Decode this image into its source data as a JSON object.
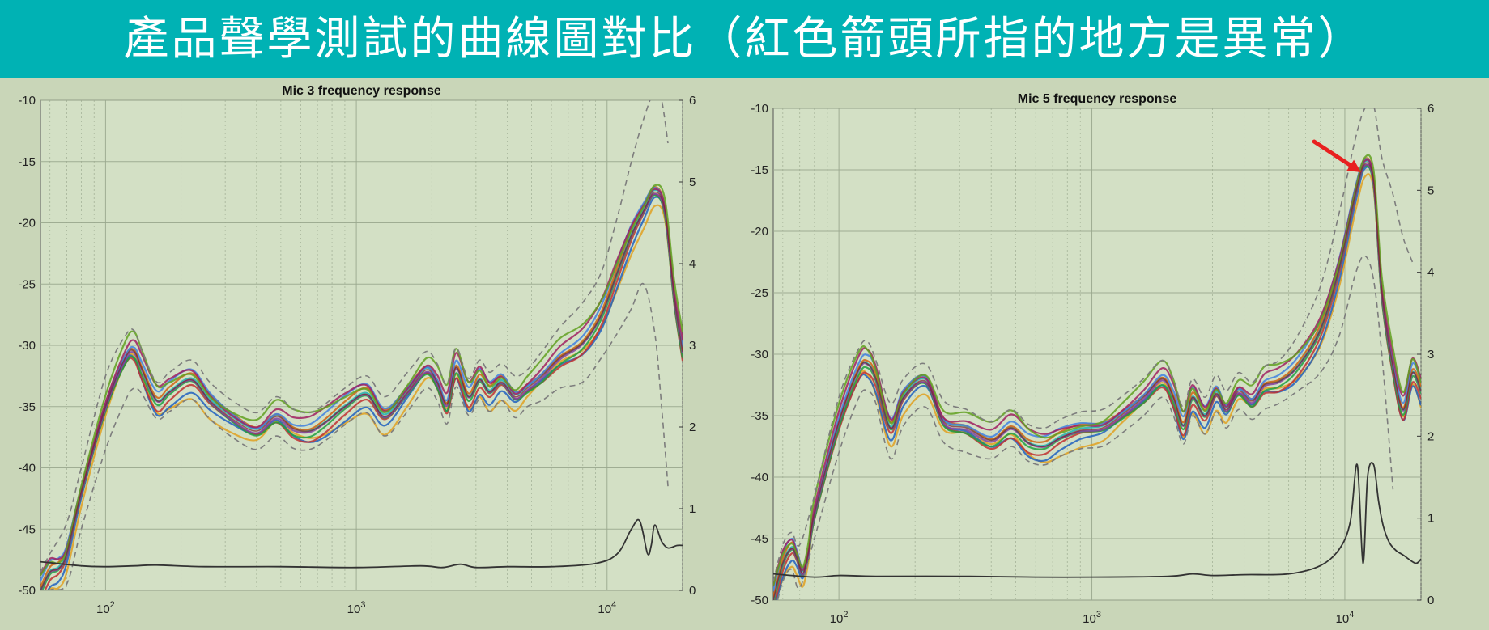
{
  "slide_title": "產品聲學測試的曲線圖對比（紅色箭頭所指的地方是異常）",
  "colors": {
    "title_bg": "#00b2b4",
    "plot_bg": "#d3e0c5",
    "page_bg": "#c9d6b8",
    "grid": "#9aa88e",
    "bound": "#7d7d7d",
    "deviation": "#333333",
    "arrow": "#e8201f"
  },
  "chart_data": [
    {
      "type": "line",
      "title": "Mic 3 frequency response",
      "xscale": "log",
      "xlim": [
        55,
        20000
      ],
      "x_ticks": [
        "10^2",
        "10^3",
        "10^4"
      ],
      "ylim": [
        -50,
        -10
      ],
      "y_ticks": [
        "-10",
        "-15",
        "-20",
        "-25",
        "-30",
        "-35",
        "-40",
        "-45",
        "-50"
      ],
      "y2lim": [
        0,
        6
      ],
      "y2_ticks": [
        "6",
        "5",
        "4",
        "3",
        "2",
        "1",
        "0"
      ],
      "response_curve": {
        "x": [
          55,
          60,
          65,
          70,
          80,
          100,
          120,
          130,
          140,
          160,
          180,
          220,
          260,
          320,
          400,
          480,
          560,
          650,
          750,
          900,
          1100,
          1300,
          1600,
          1900,
          2100,
          2300,
          2500,
          2800,
          3100,
          3400,
          3800,
          4300,
          4800,
          5500,
          6500,
          8000,
          9500,
          11000,
          12500,
          14000,
          15500,
          17000,
          18500,
          20000
        ],
        "y": [
          -50,
          -48.5,
          -48.2,
          -47,
          -42,
          -35,
          -31,
          -30.5,
          -32,
          -34.5,
          -33.8,
          -32.8,
          -34.5,
          -36,
          -37,
          -35.8,
          -36.8,
          -37,
          -36.3,
          -35,
          -34,
          -35.8,
          -33.8,
          -32,
          -33,
          -34.8,
          -31.8,
          -34.2,
          -32.8,
          -33.8,
          -33,
          -34.2,
          -33.5,
          -32.5,
          -31,
          -29.8,
          -27.5,
          -24,
          -21,
          -19,
          -17.5,
          -19,
          -26,
          -30.5
        ]
      },
      "band_half_width": 1.6,
      "upper_bound": {
        "x": [
          55,
          60,
          70,
          80,
          100,
          120,
          130,
          140,
          160,
          180,
          220,
          260,
          320,
          400,
          480,
          560,
          650,
          750,
          900,
          1100,
          1300,
          1600,
          1900,
          2100,
          2300,
          2500,
          2800,
          3100,
          3400,
          3800,
          4300,
          4800,
          5500,
          6500,
          8000,
          9500,
          11000,
          12500,
          14000,
          15500,
          16500,
          17500
        ],
        "y": [
          -48.5,
          -47,
          -44.5,
          -40,
          -32.5,
          -29.2,
          -28.8,
          -30.5,
          -33,
          -32.2,
          -31.2,
          -33,
          -34.5,
          -35.5,
          -34.2,
          -35.2,
          -35.5,
          -34.8,
          -33.5,
          -32.5,
          -34.2,
          -32.2,
          -30.5,
          -31.5,
          -33.2,
          -30.2,
          -32.7,
          -31.2,
          -32.2,
          -31.5,
          -32.5,
          -32,
          -30.5,
          -28.5,
          -26.5,
          -24,
          -19.5,
          -15,
          -11.5,
          -9.2,
          -10,
          -13.5
        ]
      },
      "lower_bound": {
        "x": [
          55,
          60,
          70,
          80,
          100,
          120,
          130,
          140,
          160,
          180,
          220,
          260,
          320,
          400,
          480,
          560,
          650,
          750,
          900,
          1100,
          1300,
          1600,
          1900,
          2100,
          2300,
          2500,
          2800,
          3100,
          3400,
          3800,
          4300,
          4800,
          5500,
          6500,
          8000,
          9500,
          11000,
          12500,
          14000,
          15500,
          16500,
          17500
        ],
        "y": [
          -51.5,
          -50,
          -49.5,
          -45,
          -38.5,
          -34.5,
          -33.5,
          -34,
          -36,
          -35.4,
          -34.4,
          -36,
          -37.5,
          -38.5,
          -37.4,
          -38.4,
          -38.5,
          -37.8,
          -36.5,
          -35.5,
          -37.4,
          -35.4,
          -33.5,
          -34.5,
          -36.4,
          -33.4,
          -35.7,
          -34.4,
          -35.4,
          -34.5,
          -35.9,
          -35,
          -34.5,
          -33.5,
          -33,
          -31,
          -29,
          -27,
          -25,
          -29,
          -35,
          -41.5
        ]
      },
      "deviation_curve": {
        "x": [
          55,
          80,
          100,
          130,
          160,
          250,
          500,
          1000,
          1800,
          2200,
          2600,
          3000,
          4000,
          6000,
          9000,
          11000,
          12500,
          13500,
          14500,
          15000,
          15500,
          16500,
          17500,
          19000,
          20000
        ],
        "y": [
          0.35,
          0.3,
          0.29,
          0.3,
          0.31,
          0.29,
          0.29,
          0.28,
          0.3,
          0.28,
          0.32,
          0.28,
          0.29,
          0.29,
          0.33,
          0.45,
          0.75,
          0.85,
          0.45,
          0.55,
          0.8,
          0.6,
          0.52,
          0.55,
          0.55
        ]
      }
    },
    {
      "type": "line",
      "title": "Mic 5 frequency response",
      "xscale": "log",
      "xlim": [
        55,
        20000
      ],
      "x_ticks": [
        "10^2",
        "10^3",
        "10^4"
      ],
      "ylim": [
        -50,
        -10
      ],
      "y_ticks": [
        "-10",
        "-15",
        "-20",
        "-25",
        "-30",
        "-35",
        "-40",
        "-45",
        "-50"
      ],
      "y2lim": [
        0,
        6
      ],
      "y2_ticks": [
        "6",
        "5",
        "4",
        "3",
        "2",
        "1",
        "0"
      ],
      "response_curve": {
        "x": [
          55,
          60,
          65,
          68,
          72,
          76,
          80,
          100,
          120,
          130,
          140,
          160,
          180,
          220,
          260,
          320,
          400,
          480,
          560,
          650,
          750,
          900,
          1100,
          1300,
          1600,
          1900,
          2100,
          2300,
          2500,
          2800,
          3100,
          3400,
          3800,
          4300,
          4800,
          5500,
          6500,
          8000,
          9500,
          11000,
          12000,
          13000,
          14000,
          15500,
          17000,
          18500,
          20000
        ],
        "y": [
          -50,
          -47,
          -45.8,
          -46.5,
          -47.8,
          -46,
          -43,
          -35.5,
          -31.2,
          -30.8,
          -32,
          -36,
          -33.5,
          -32.2,
          -35.5,
          -36,
          -37,
          -36,
          -37.2,
          -37.5,
          -36.8,
          -36.2,
          -36,
          -35,
          -33.5,
          -32,
          -33.5,
          -35.8,
          -33.5,
          -35,
          -33.2,
          -34.5,
          -33,
          -33.8,
          -32.5,
          -32.2,
          -31,
          -28,
          -23,
          -17,
          -14.5,
          -16,
          -25,
          -31,
          -34.5,
          -31.5,
          -33
        ]
      },
      "band_half_width": 1.5,
      "upper_bound": {
        "x": [
          55,
          60,
          65,
          70,
          80,
          100,
          120,
          130,
          140,
          160,
          180,
          220,
          260,
          320,
          400,
          480,
          560,
          650,
          750,
          900,
          1100,
          1300,
          1600,
          1900,
          2100,
          2300,
          2500,
          2800,
          3100,
          3400,
          3800,
          4300,
          4800,
          5500,
          6500,
          8000,
          9500,
          11000,
          12000,
          13000,
          14000,
          15500,
          17000,
          18500
        ],
        "y": [
          -48.5,
          -45.5,
          -44.5,
          -45.5,
          -41.5,
          -33.5,
          -29.5,
          -29,
          -30.5,
          -34,
          -32,
          -30.8,
          -33.8,
          -34.5,
          -35.5,
          -34.5,
          -35.7,
          -36,
          -35.3,
          -34.7,
          -34.5,
          -33.5,
          -32,
          -30.5,
          -32,
          -34.3,
          -32,
          -33.5,
          -31.7,
          -33,
          -31.5,
          -32.3,
          -31,
          -30.5,
          -28.5,
          -24.5,
          -18.5,
          -12.5,
          -10,
          -9.8,
          -14,
          -17,
          -20.5,
          -22.5
        ]
      },
      "lower_bound": {
        "x": [
          55,
          60,
          65,
          70,
          80,
          100,
          120,
          130,
          140,
          160,
          180,
          220,
          260,
          320,
          400,
          480,
          560,
          650,
          750,
          900,
          1100,
          1300,
          1600,
          1900,
          2100,
          2300,
          2500,
          2800,
          3100,
          3400,
          3800,
          4300,
          4800,
          5500,
          6500,
          8000,
          9500,
          11000,
          12000,
          13000,
          14000,
          15500
        ],
        "y": [
          -51.5,
          -48.5,
          -47.5,
          -49,
          -45,
          -38,
          -33.5,
          -33,
          -34,
          -38.5,
          -35.8,
          -34.3,
          -37.2,
          -38,
          -38.5,
          -37.5,
          -38.7,
          -39,
          -38.3,
          -37.7,
          -37.5,
          -36.5,
          -35,
          -33.5,
          -35,
          -37.3,
          -35,
          -36.5,
          -34.7,
          -36,
          -34.5,
          -35.3,
          -34.5,
          -34,
          -33,
          -31.5,
          -28.5,
          -23.5,
          -22,
          -24,
          -30,
          -41
        ]
      },
      "deviation_curve": {
        "x": [
          55,
          80,
          100,
          140,
          300,
          600,
          1000,
          2000,
          2500,
          3000,
          4000,
          6000,
          8000,
          9500,
          10500,
          11200,
          11800,
          12300,
          13000,
          13600,
          14200,
          15000,
          16000,
          17000,
          19000,
          20000
        ],
        "y": [
          0.32,
          0.28,
          0.3,
          0.29,
          0.29,
          0.28,
          0.28,
          0.29,
          0.32,
          0.3,
          0.31,
          0.32,
          0.42,
          0.62,
          0.95,
          1.65,
          0.45,
          1.5,
          1.65,
          1.2,
          0.9,
          0.7,
          0.6,
          0.55,
          0.45,
          0.5
        ]
      },
      "annotation": "red-arrow"
    }
  ]
}
